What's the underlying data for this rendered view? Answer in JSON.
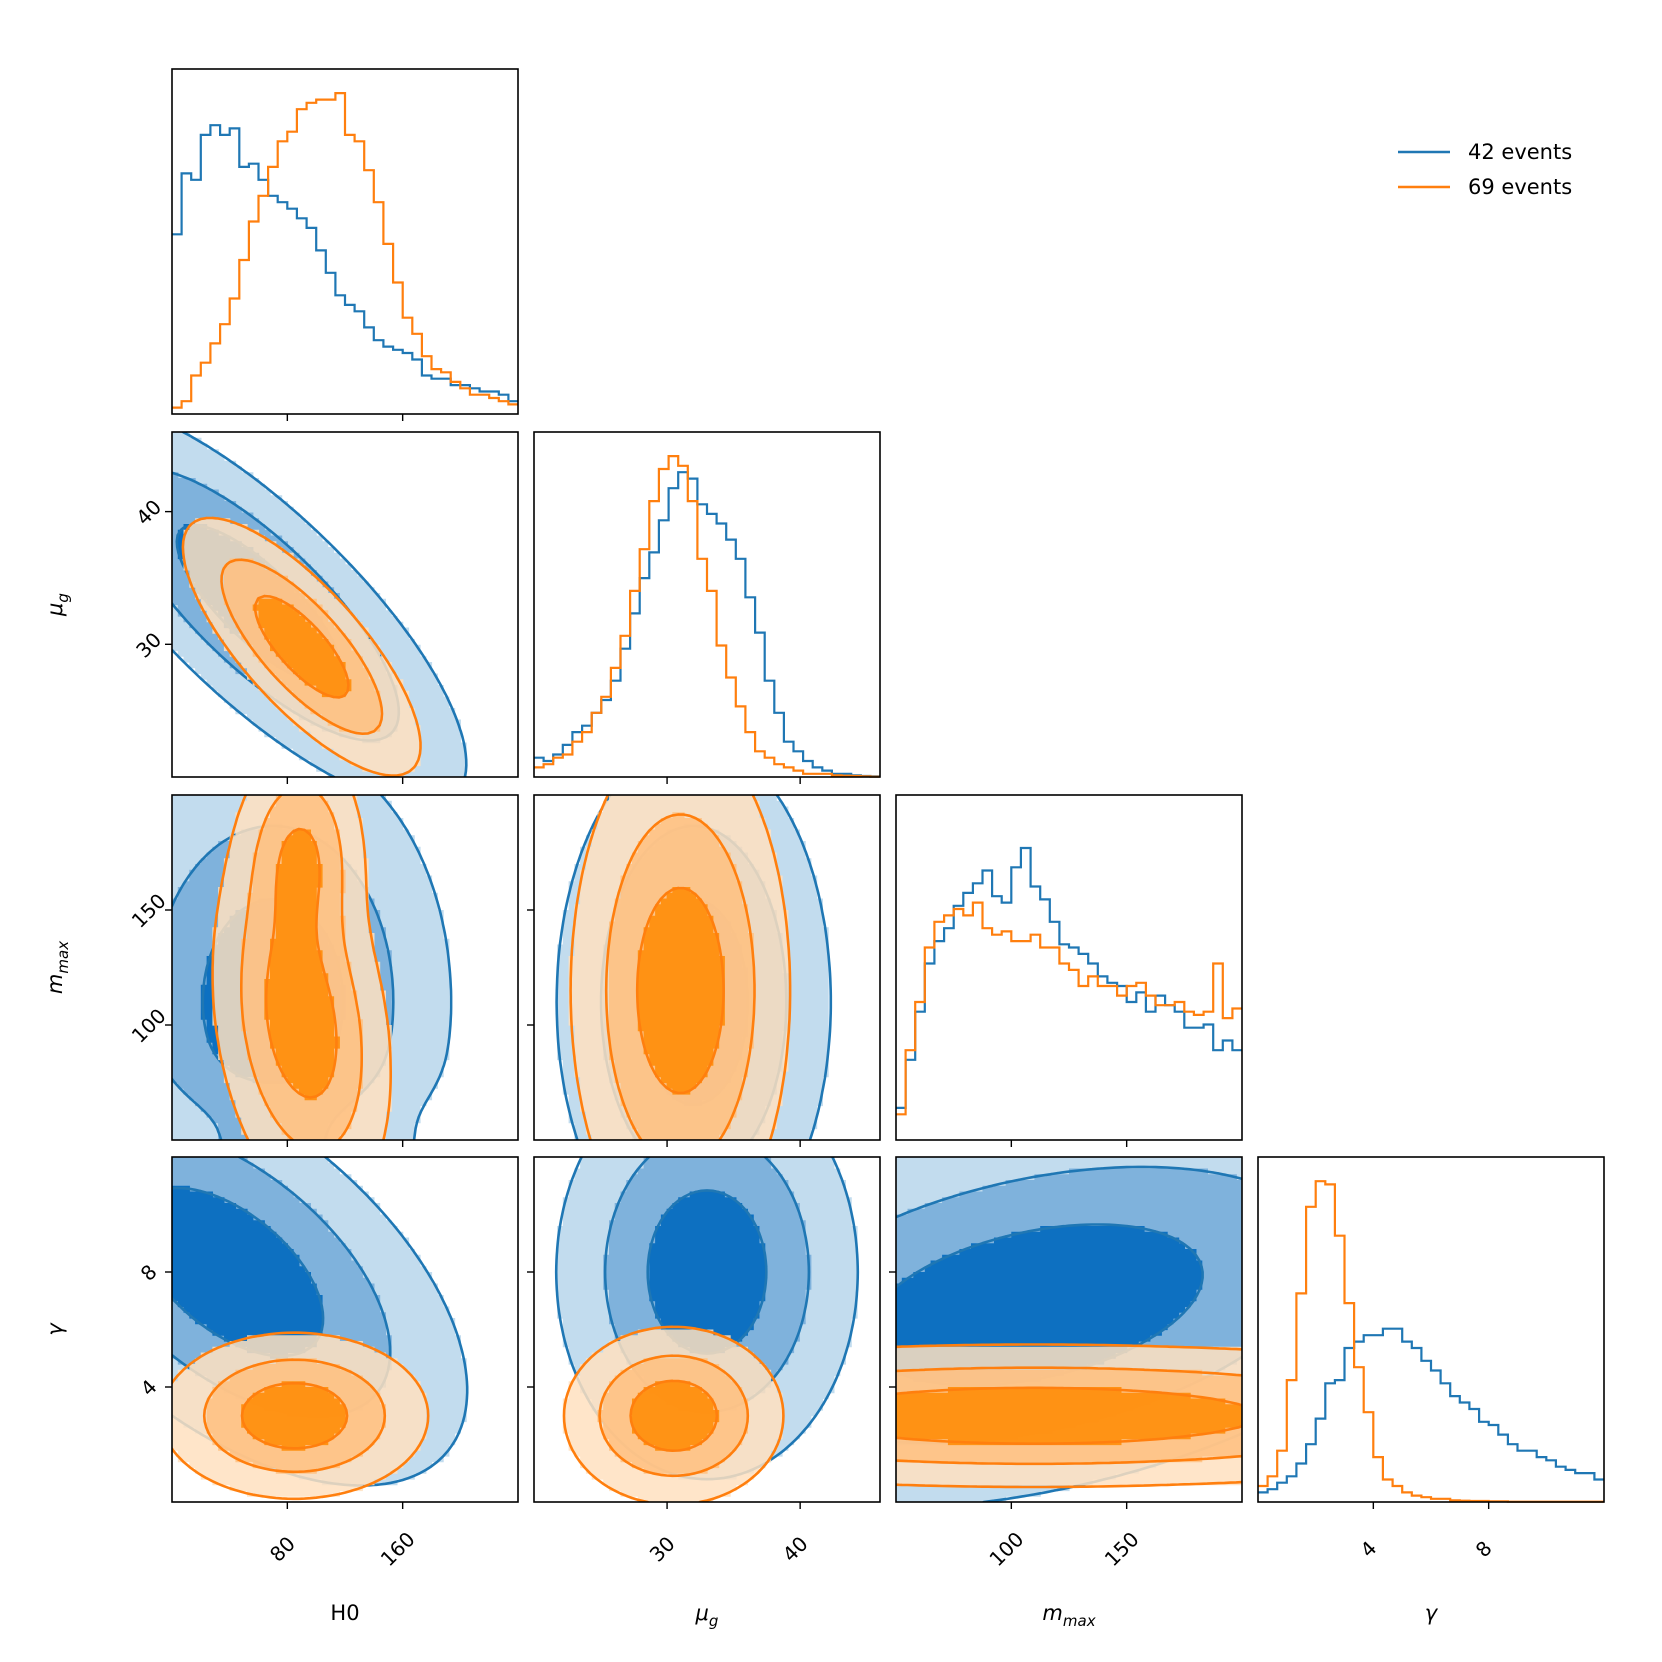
{
  "chart_data": {
    "type": "corner",
    "parameters": [
      {
        "key": "H0",
        "label": "H0",
        "sub": "",
        "range": [
          0,
          240
        ],
        "ticks": [
          80,
          160
        ]
      },
      {
        "key": "mu_g",
        "label": "μ",
        "sub": "g",
        "range": [
          20,
          46
        ],
        "ticks": [
          30,
          40
        ]
      },
      {
        "key": "m_max",
        "label": "m",
        "sub": "max",
        "range": [
          50,
          200
        ],
        "ticks": [
          100,
          150
        ]
      },
      {
        "key": "gamma",
        "label": "γ",
        "sub": "",
        "range": [
          0,
          12
        ],
        "ticks": [
          4,
          8
        ]
      }
    ],
    "legend": {
      "position": "top-right"
    },
    "series": [
      {
        "name": "42 events",
        "color": "#1f77b4",
        "fill_colors": [
          "#c2dcee",
          "#7fb2dc",
          "#0d70c1"
        ],
        "hist": {
          "H0": [
            0.56,
            0.75,
            0.73,
            0.87,
            0.9,
            0.87,
            0.89,
            0.77,
            0.78,
            0.73,
            0.68,
            0.66,
            0.64,
            0.61,
            0.58,
            0.51,
            0.44,
            0.37,
            0.34,
            0.32,
            0.27,
            0.23,
            0.21,
            0.2,
            0.19,
            0.17,
            0.12,
            0.11,
            0.11,
            0.09,
            0.09,
            0.08,
            0.07,
            0.07,
            0.06,
            0.04
          ],
          "mu_g": [
            0.06,
            0.05,
            0.07,
            0.1,
            0.14,
            0.16,
            0.2,
            0.24,
            0.3,
            0.4,
            0.51,
            0.62,
            0.7,
            0.8,
            0.9,
            0.95,
            0.93,
            0.85,
            0.82,
            0.79,
            0.74,
            0.68,
            0.56,
            0.45,
            0.3,
            0.2,
            0.11,
            0.08,
            0.05,
            0.03,
            0.02,
            0.01,
            0.01,
            0.005,
            0.003,
            0.002
          ],
          "m_max": [
            0.1,
            0.25,
            0.4,
            0.55,
            0.62,
            0.66,
            0.73,
            0.77,
            0.8,
            0.84,
            0.76,
            0.74,
            0.85,
            0.91,
            0.79,
            0.75,
            0.68,
            0.61,
            0.6,
            0.58,
            0.55,
            0.51,
            0.49,
            0.48,
            0.43,
            0.46,
            0.4,
            0.45,
            0.42,
            0.4,
            0.35,
            0.35,
            0.36,
            0.28,
            0.31,
            0.28
          ],
          "gamma": [
            0.03,
            0.04,
            0.06,
            0.08,
            0.12,
            0.18,
            0.26,
            0.37,
            0.38,
            0.48,
            0.5,
            0.52,
            0.52,
            0.54,
            0.54,
            0.5,
            0.48,
            0.44,
            0.41,
            0.37,
            0.33,
            0.31,
            0.29,
            0.25,
            0.24,
            0.21,
            0.18,
            0.16,
            0.16,
            0.14,
            0.13,
            0.11,
            0.1,
            0.09,
            0.09,
            0.07
          ]
        }
      },
      {
        "name": "69 events",
        "color": "#ff7f0e",
        "fill_colors": [
          "#ffe0c0",
          "#ffc07f",
          "#ff8a00"
        ],
        "hist": {
          "H0": [
            0.02,
            0.04,
            0.12,
            0.16,
            0.22,
            0.28,
            0.36,
            0.48,
            0.6,
            0.68,
            0.77,
            0.85,
            0.88,
            0.95,
            0.97,
            0.98,
            0.98,
            1.0,
            0.87,
            0.85,
            0.76,
            0.66,
            0.53,
            0.41,
            0.3,
            0.25,
            0.18,
            0.14,
            0.13,
            0.1,
            0.08,
            0.06,
            0.06,
            0.05,
            0.04,
            0.03
          ],
          "mu_g": [
            0.03,
            0.04,
            0.06,
            0.07,
            0.11,
            0.14,
            0.2,
            0.25,
            0.34,
            0.44,
            0.58,
            0.71,
            0.86,
            0.96,
            1.0,
            0.97,
            0.86,
            0.68,
            0.58,
            0.41,
            0.31,
            0.22,
            0.14,
            0.08,
            0.06,
            0.04,
            0.03,
            0.02,
            0.01,
            0.01,
            0.01,
            0.005,
            0.004,
            0.003,
            0.002,
            0.001
          ],
          "m_max": [
            0.08,
            0.28,
            0.43,
            0.6,
            0.68,
            0.7,
            0.72,
            0.7,
            0.74,
            0.66,
            0.64,
            0.65,
            0.62,
            0.62,
            0.64,
            0.6,
            0.6,
            0.55,
            0.53,
            0.48,
            0.51,
            0.48,
            0.48,
            0.45,
            0.48,
            0.49,
            0.45,
            0.42,
            0.42,
            0.43,
            0.4,
            0.39,
            0.4,
            0.55,
            0.38,
            0.41
          ],
          "gamma": [
            0.05,
            0.08,
            0.16,
            0.38,
            0.65,
            0.92,
            1.0,
            0.99,
            0.83,
            0.62,
            0.42,
            0.28,
            0.14,
            0.07,
            0.05,
            0.03,
            0.02,
            0.015,
            0.01,
            0.01,
            0.005,
            0.004,
            0.003,
            0.003,
            0.002,
            0.002,
            0.001,
            0.001,
            0.001,
            0.001,
            0.001,
            0.001,
            0.001,
            0.001,
            0.001,
            0.001
          ]
        }
      }
    ]
  }
}
